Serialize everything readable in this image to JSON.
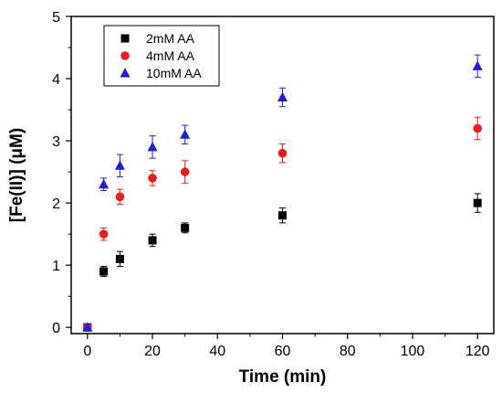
{
  "chart_data": {
    "type": "scatter",
    "title": "",
    "xlabel": "Time (min)",
    "ylabel": "[Fe(II)] (μM)",
    "xlim": [
      -5,
      125
    ],
    "ylim": [
      -0.1,
      5
    ],
    "x_ticks": [
      0,
      20,
      40,
      60,
      80,
      100,
      120
    ],
    "y_ticks": [
      0,
      1,
      2,
      3,
      4,
      5
    ],
    "grid": false,
    "legend_position": "top-left",
    "series": [
      {
        "name": "2mM AA",
        "marker": "square",
        "color": "#000000",
        "x": [
          0,
          5,
          10,
          20,
          30,
          60,
          120
        ],
        "y": [
          0.0,
          0.9,
          1.1,
          1.4,
          1.6,
          1.8,
          2.0
        ],
        "err": [
          0.05,
          0.08,
          0.12,
          0.1,
          0.08,
          0.12,
          0.15
        ]
      },
      {
        "name": "4mM AA",
        "marker": "circle",
        "color": "#ee1c1c",
        "x": [
          0,
          5,
          10,
          20,
          30,
          60,
          120
        ],
        "y": [
          0.0,
          1.5,
          2.1,
          2.4,
          2.5,
          2.8,
          3.2
        ],
        "err": [
          0.05,
          0.1,
          0.12,
          0.12,
          0.18,
          0.15,
          0.18
        ]
      },
      {
        "name": "10mM AA",
        "marker": "triangle",
        "color": "#1f1fd6",
        "x": [
          0,
          5,
          10,
          20,
          30,
          60,
          120
        ],
        "y": [
          0.0,
          2.3,
          2.6,
          2.9,
          3.1,
          3.7,
          4.2
        ],
        "err": [
          0.05,
          0.1,
          0.18,
          0.18,
          0.15,
          0.15,
          0.18
        ]
      }
    ]
  }
}
